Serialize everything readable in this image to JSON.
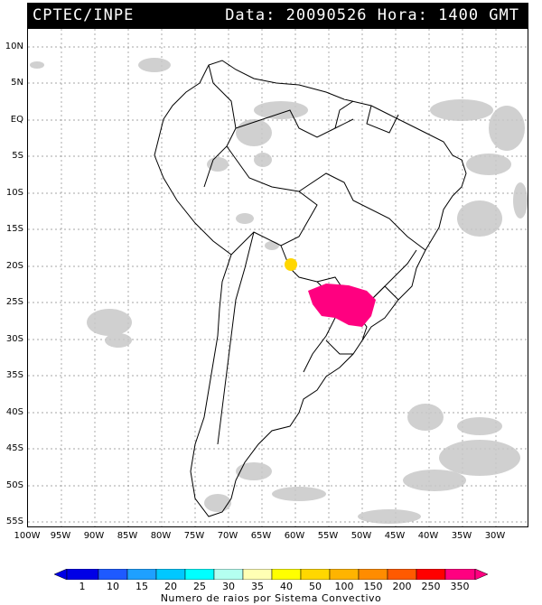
{
  "header": {
    "source": "CPTEC/INPE",
    "datetime": "Data: 20090526 Hora: 1400 GMT"
  },
  "lat_labels": [
    "10N",
    "5N",
    "EQ",
    "5S",
    "10S",
    "15S",
    "20S",
    "25S",
    "30S",
    "35S",
    "40S",
    "45S",
    "50S",
    "55S"
  ],
  "lon_labels": [
    "100W",
    "95W",
    "90W",
    "85W",
    "80W",
    "75W",
    "70W",
    "65W",
    "60W",
    "55W",
    "50W",
    "45W",
    "40W",
    "35W",
    "30W"
  ],
  "legend": {
    "title": "Numero de raios por Sistema Convectivo",
    "labels": [
      "1",
      "10",
      "15",
      "20",
      "25",
      "30",
      "35",
      "40",
      "50",
      "100",
      "150",
      "200",
      "250",
      "350"
    ],
    "colors": [
      "#0000e6",
      "#1e5aff",
      "#1ea0ff",
      "#00c8ff",
      "#00ffff",
      "#b4fff0",
      "#ffffb4",
      "#ffff00",
      "#ffd700",
      "#ffb400",
      "#ff8c00",
      "#ff5a00",
      "#ff0000",
      "#ff0080"
    ]
  },
  "map": {
    "cloud_color": "#c8c8c8",
    "systems": [
      {
        "name": "paraguay-brazil-system",
        "color": "#ff0080",
        "level": "350"
      },
      {
        "name": "bolivia-paraguay-system",
        "color": "#ffd700",
        "level": "50"
      }
    ]
  }
}
